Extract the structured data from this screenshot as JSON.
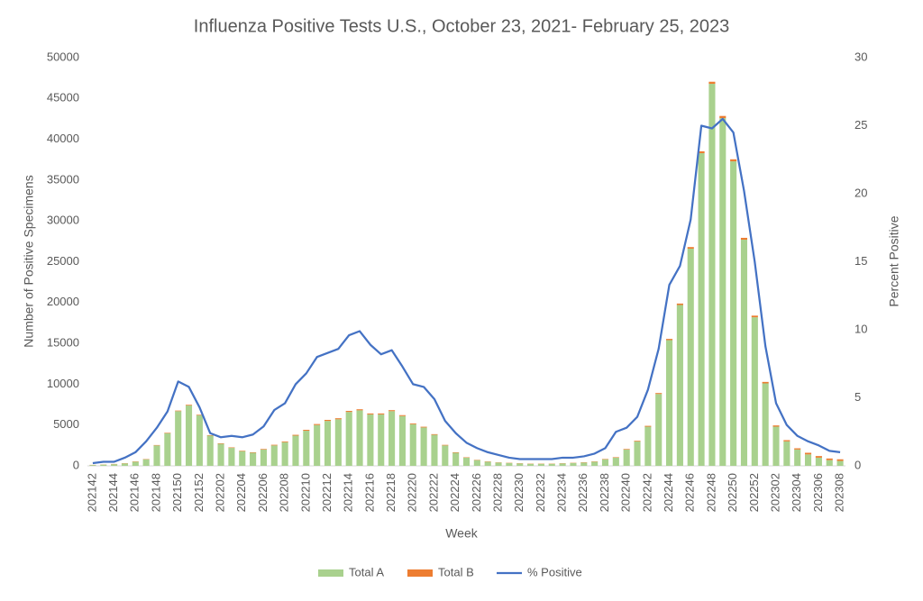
{
  "chart_data": {
    "type": "combo",
    "title": "Influenza Positive Tests U.S., October 23, 2021- February 25, 2023",
    "xlabel": "Week",
    "ylabel": "Number of Positive Specimens",
    "y2label": "Percent Positive",
    "categories": [
      "202142",
      null,
      "202144",
      null,
      "202146",
      null,
      "202148",
      null,
      "202150",
      null,
      "202152",
      null,
      "202202",
      null,
      "202204",
      null,
      "202206",
      null,
      "202208",
      null,
      "202210",
      null,
      "202212",
      null,
      "202214",
      null,
      "202216",
      null,
      "202218",
      null,
      "202220",
      null,
      "202222",
      null,
      "202224",
      null,
      "202226",
      null,
      "202228",
      null,
      "202230",
      null,
      "202232",
      null,
      "202234",
      null,
      "202236",
      null,
      "202238",
      null,
      "202240",
      null,
      "202242",
      null,
      "202244",
      null,
      "202246",
      null,
      "202248",
      null,
      "202250",
      null,
      "202252",
      null,
      "202302",
      null,
      "202304",
      null,
      "202306",
      null,
      "202308"
    ],
    "series": [
      {
        "name": "Total A",
        "type": "bar",
        "color": "#a9d18e",
        "values": [
          100,
          150,
          200,
          300,
          500,
          800,
          2500,
          4000,
          6700,
          7400,
          6200,
          3700,
          2700,
          2200,
          1800,
          1600,
          2000,
          2500,
          2900,
          3700,
          4300,
          5000,
          5500,
          5700,
          6600,
          6800,
          6300,
          6300,
          6700,
          6100,
          5100,
          4700,
          3800,
          2500,
          1600,
          1000,
          700,
          500,
          400,
          350,
          300,
          250,
          250,
          250,
          300,
          350,
          400,
          500,
          800,
          1000,
          2000,
          3000,
          4800,
          8800,
          15400,
          19700,
          26600,
          38300,
          46800,
          42600,
          37300,
          27700,
          18200,
          10100,
          4800,
          3000,
          2000,
          1400,
          1000,
          700,
          600
        ]
      },
      {
        "name": "Total B",
        "type": "bar",
        "color": "#ed7d31",
        "values": [
          20,
          20,
          30,
          30,
          40,
          40,
          50,
          60,
          70,
          80,
          70,
          60,
          60,
          60,
          60,
          60,
          70,
          80,
          90,
          100,
          110,
          120,
          130,
          130,
          130,
          130,
          120,
          120,
          120,
          110,
          100,
          90,
          80,
          70,
          60,
          50,
          40,
          40,
          30,
          30,
          30,
          30,
          30,
          30,
          30,
          30,
          40,
          40,
          50,
          60,
          70,
          80,
          100,
          120,
          150,
          180,
          200,
          230,
          250,
          260,
          250,
          230,
          200,
          180,
          150,
          150,
          150,
          200,
          200,
          200,
          200
        ]
      },
      {
        "name": "% Positive",
        "type": "line",
        "axis": "y2",
        "color": "#4472c4",
        "values": [
          0.2,
          0.3,
          0.3,
          0.6,
          1.0,
          1.8,
          2.8,
          4.0,
          6.2,
          5.8,
          4.3,
          2.4,
          2.1,
          2.2,
          2.1,
          2.3,
          2.9,
          4.1,
          4.6,
          6.0,
          6.8,
          8.0,
          8.3,
          8.6,
          9.6,
          9.9,
          8.9,
          8.2,
          8.5,
          7.3,
          6.0,
          5.8,
          4.9,
          3.3,
          2.4,
          1.7,
          1.3,
          1.0,
          0.8,
          0.6,
          0.5,
          0.5,
          0.5,
          0.5,
          0.6,
          0.6,
          0.7,
          0.9,
          1.3,
          2.5,
          2.8,
          3.6,
          5.6,
          8.6,
          13.3,
          14.7,
          18.1,
          25.0,
          24.8,
          25.5,
          24.5,
          20.2,
          15.0,
          8.8,
          4.6,
          3.0,
          2.2,
          1.8,
          1.5,
          1.1,
          1.0
        ]
      }
    ],
    "ylim": [
      0,
      50000
    ],
    "yticks": [
      0,
      5000,
      10000,
      15000,
      20000,
      25000,
      30000,
      35000,
      40000,
      45000,
      50000
    ],
    "y2lim": [
      0,
      30
    ],
    "y2ticks": [
      0,
      5,
      10,
      15,
      20,
      25,
      30
    ],
    "grid": false,
    "legend": "bottom"
  }
}
